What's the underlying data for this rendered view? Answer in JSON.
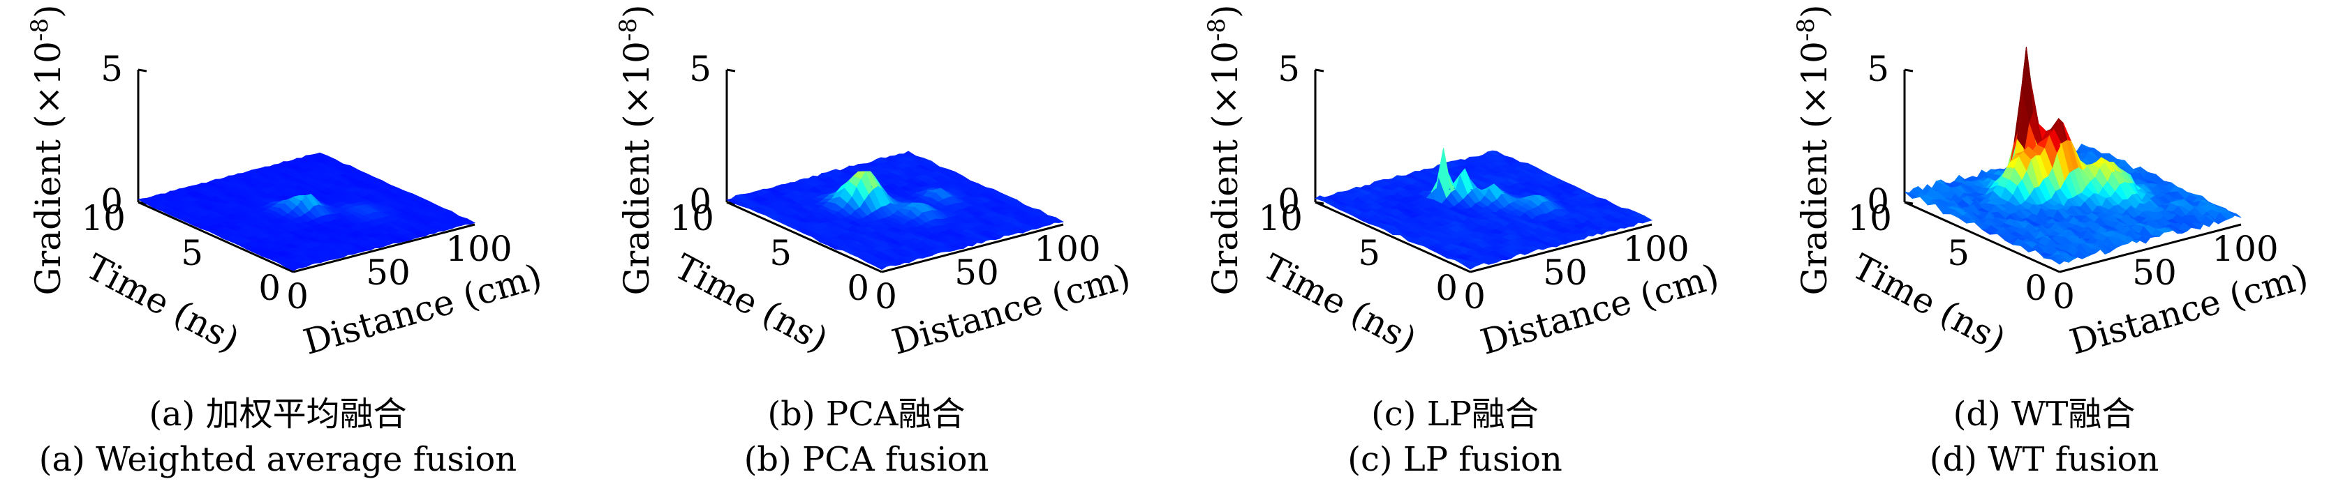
{
  "chart_data": [
    {
      "type": "surface",
      "caption_cn": "(a) 加权平均融合",
      "caption_en": "(a) Weighted average fusion",
      "zlabel": "Gradient",
      "zscale": "(×10",
      "zexp": "-8",
      "zclose": ")",
      "xlabel": "Distance (cm)",
      "ylabel": "Time (ns)",
      "xticks": [
        "0",
        "50",
        "100"
      ],
      "yticks": [
        "10",
        "5",
        "0"
      ],
      "zticks": [
        "0",
        "5"
      ],
      "xlim": [
        0,
        100
      ],
      "ylim": [
        0,
        10
      ],
      "zlim": [
        0,
        5
      ],
      "colormap": "jet",
      "baseline": 0.08,
      "peaks": [
        {
          "distance": 52,
          "time": 5.0,
          "gradient": 0.55,
          "spread": 4
        },
        {
          "distance": 45,
          "time": 5.5,
          "gradient": 0.35,
          "spread": 4
        },
        {
          "distance": 70,
          "time": 3.5,
          "gradient": 0.15,
          "spread": 6
        }
      ]
    },
    {
      "type": "surface",
      "caption_cn": "(b) PCA融合",
      "caption_en": "(b) PCA fusion",
      "zlabel": "Gradient",
      "zscale": "(×10",
      "zexp": "-8",
      "zclose": ")",
      "xlabel": "Distance (cm)",
      "ylabel": "Time (ns)",
      "xticks": [
        "0",
        "50",
        "100"
      ],
      "yticks": [
        "10",
        "5",
        "0"
      ],
      "zticks": [
        "0",
        "5"
      ],
      "xlim": [
        0,
        100
      ],
      "ylim": [
        0,
        10
      ],
      "zlim": [
        0,
        5
      ],
      "colormap": "jet",
      "baseline": 0.12,
      "peaks": [
        {
          "distance": 45,
          "time": 6.0,
          "gradient": 1.1,
          "spread": 5
        },
        {
          "distance": 38,
          "time": 6.5,
          "gradient": 0.7,
          "spread": 5
        },
        {
          "distance": 55,
          "time": 4.0,
          "gradient": 0.4,
          "spread": 5
        },
        {
          "distance": 75,
          "time": 5.0,
          "gradient": 0.35,
          "spread": 4
        }
      ]
    },
    {
      "type": "surface",
      "caption_cn": "(c) LP融合",
      "caption_en": "(c) LP fusion",
      "zlabel": "Gradient",
      "zscale": "(×10",
      "zexp": "-8",
      "zclose": ")",
      "xlabel": "Distance (cm)",
      "ylabel": "Time (ns)",
      "xticks": [
        "0",
        "50",
        "100"
      ],
      "yticks": [
        "10",
        "5",
        "0"
      ],
      "zticks": [
        "0",
        "5"
      ],
      "xlim": [
        0,
        100
      ],
      "ylim": [
        0,
        10
      ],
      "zlim": [
        0,
        5
      ],
      "colormap": "jet",
      "baseline": 0.15,
      "peaks": [
        {
          "distance": 45,
          "time": 7.0,
          "gradient": 1.8,
          "spread": 2
        },
        {
          "distance": 52,
          "time": 6.5,
          "gradient": 1.1,
          "spread": 3
        },
        {
          "distance": 60,
          "time": 5.5,
          "gradient": 0.6,
          "spread": 4
        },
        {
          "distance": 70,
          "time": 4.0,
          "gradient": 0.4,
          "spread": 5
        }
      ]
    },
    {
      "type": "surface",
      "caption_cn": "(d) WT融合",
      "caption_en": "(d) WT fusion",
      "zlabel": "Gradient",
      "zscale": "(×10",
      "zexp": "-8",
      "zclose": ")",
      "xlabel": "Distance (cm)",
      "ylabel": "Time (ns)",
      "xticks": [
        "0",
        "50",
        "100"
      ],
      "yticks": [
        "10",
        "5",
        "0"
      ],
      "zticks": [
        "0",
        "5"
      ],
      "xlim": [
        0,
        100
      ],
      "ylim": [
        0,
        10
      ],
      "zlim": [
        0,
        5
      ],
      "colormap": "jet",
      "baseline": 0.35,
      "peaks": [
        {
          "distance": 50,
          "time": 8.0,
          "gradient": 4.8,
          "spread": 3
        },
        {
          "distance": 55,
          "time": 6.5,
          "gradient": 2.6,
          "spread": 6
        },
        {
          "distance": 40,
          "time": 7.0,
          "gradient": 1.6,
          "spread": 6
        },
        {
          "distance": 70,
          "time": 5.0,
          "gradient": 1.3,
          "spread": 7
        }
      ]
    }
  ]
}
